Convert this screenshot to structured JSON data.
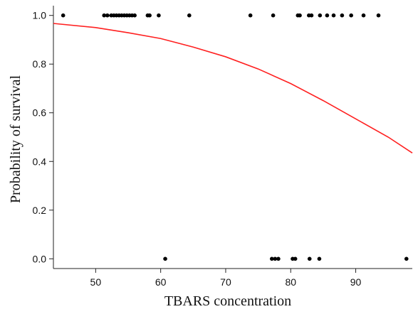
{
  "chart_data": {
    "type": "scatter",
    "title": "",
    "xlabel": "TBARS concentration",
    "ylabel": "Probability of survival",
    "xlim": [
      43.5,
      98.7
    ],
    "ylim": [
      -0.04,
      1.04
    ],
    "x_ticks": [
      50,
      60,
      70,
      80,
      90
    ],
    "x_tick_labels": [
      "50",
      "60",
      "70",
      "80",
      "90"
    ],
    "y_ticks": [
      0.0,
      0.2,
      0.4,
      0.6,
      0.8,
      1.0
    ],
    "y_tick_labels": [
      "0.0",
      "0.2",
      "0.4",
      "0.6",
      "0.8",
      "1.0"
    ],
    "grid": false,
    "colors": {
      "points": "#000000",
      "curve": "#ff2020",
      "axis": "#222222"
    },
    "series": [
      {
        "type": "scatter",
        "points": [
          {
            "x": 45.0,
            "y": 1
          },
          {
            "x": 51.3,
            "y": 1
          },
          {
            "x": 51.8,
            "y": 1
          },
          {
            "x": 52.4,
            "y": 1
          },
          {
            "x": 52.8,
            "y": 1
          },
          {
            "x": 53.2,
            "y": 1
          },
          {
            "x": 53.6,
            "y": 1
          },
          {
            "x": 54.0,
            "y": 1
          },
          {
            "x": 54.4,
            "y": 1
          },
          {
            "x": 54.8,
            "y": 1
          },
          {
            "x": 55.2,
            "y": 1
          },
          {
            "x": 55.6,
            "y": 1
          },
          {
            "x": 56.0,
            "y": 1
          },
          {
            "x": 58.0,
            "y": 1
          },
          {
            "x": 58.3,
            "y": 1
          },
          {
            "x": 59.7,
            "y": 1
          },
          {
            "x": 64.4,
            "y": 1
          },
          {
            "x": 73.8,
            "y": 1
          },
          {
            "x": 77.3,
            "y": 1
          },
          {
            "x": 81.1,
            "y": 1
          },
          {
            "x": 81.4,
            "y": 1
          },
          {
            "x": 82.8,
            "y": 1
          },
          {
            "x": 83.2,
            "y": 1
          },
          {
            "x": 84.5,
            "y": 1
          },
          {
            "x": 85.6,
            "y": 1
          },
          {
            "x": 86.6,
            "y": 1
          },
          {
            "x": 87.9,
            "y": 1
          },
          {
            "x": 89.3,
            "y": 1
          },
          {
            "x": 91.2,
            "y": 1
          },
          {
            "x": 93.5,
            "y": 1
          },
          {
            "x": 60.7,
            "y": 0
          },
          {
            "x": 77.1,
            "y": 0
          },
          {
            "x": 77.6,
            "y": 0
          },
          {
            "x": 78.1,
            "y": 0
          },
          {
            "x": 80.3,
            "y": 0
          },
          {
            "x": 80.7,
            "y": 0
          },
          {
            "x": 82.9,
            "y": 0
          },
          {
            "x": 84.4,
            "y": 0
          },
          {
            "x": 97.8,
            "y": 0
          }
        ]
      },
      {
        "type": "line",
        "points": [
          {
            "x": 43.5,
            "y": 0.967
          },
          {
            "x": 50,
            "y": 0.95
          },
          {
            "x": 55,
            "y": 0.929
          },
          {
            "x": 60,
            "y": 0.905
          },
          {
            "x": 65,
            "y": 0.87
          },
          {
            "x": 70,
            "y": 0.83
          },
          {
            "x": 75,
            "y": 0.78
          },
          {
            "x": 80,
            "y": 0.72
          },
          {
            "x": 85,
            "y": 0.65
          },
          {
            "x": 90,
            "y": 0.575
          },
          {
            "x": 95,
            "y": 0.5
          },
          {
            "x": 98.7,
            "y": 0.435
          }
        ]
      }
    ]
  }
}
